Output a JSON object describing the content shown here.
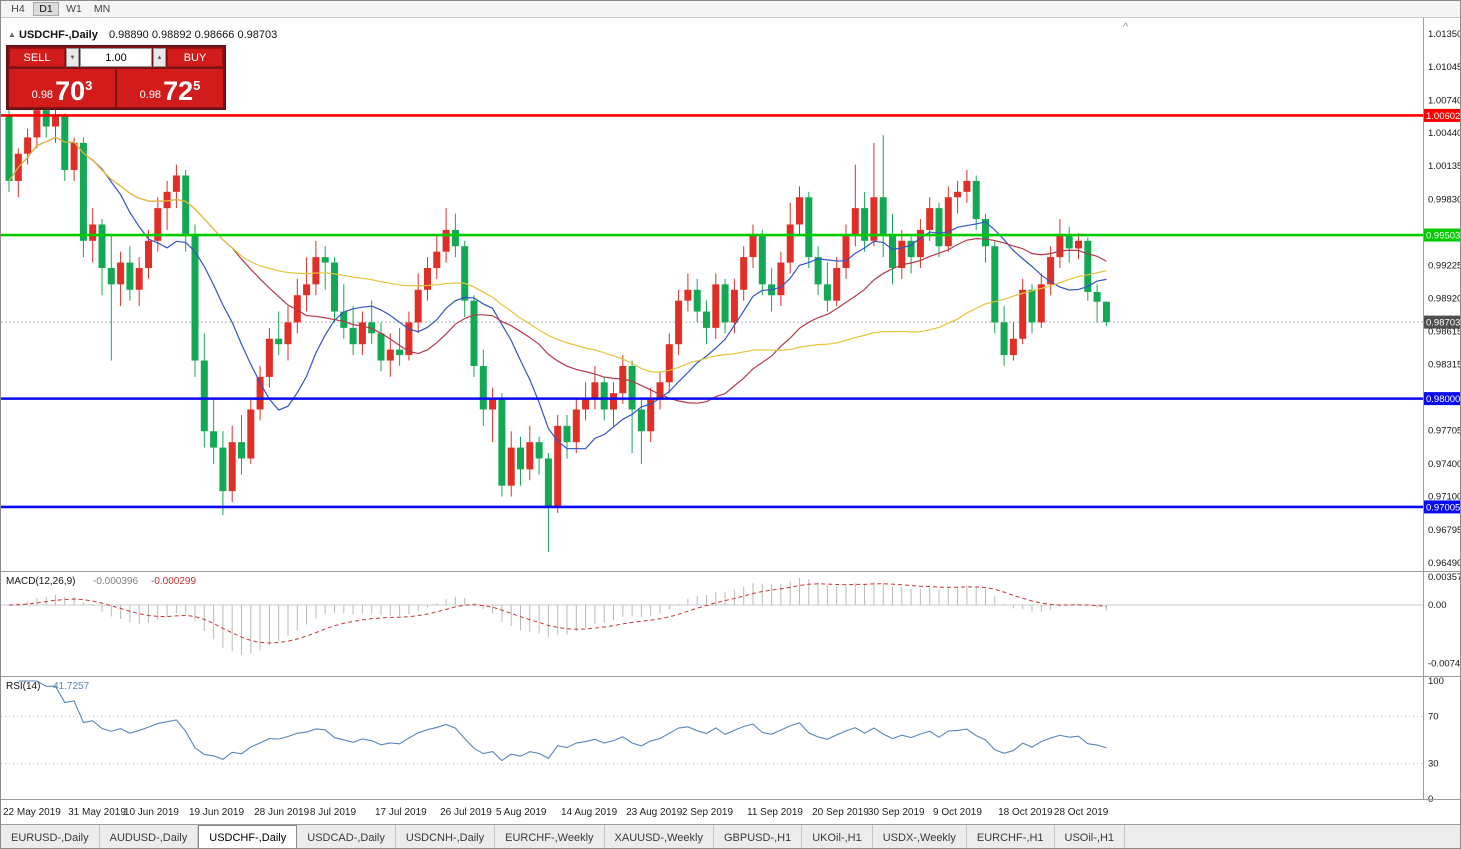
{
  "toolbar": {
    "periods": [
      "H4",
      "D1",
      "W1",
      "MN"
    ],
    "active_period": "D1"
  },
  "icons": {
    "collapse": "▲",
    "shift_marker": "^",
    "spin_up": "▲",
    "spin_down": "▼"
  },
  "trade_panel": {
    "sell_label": "SELL",
    "buy_label": "BUY",
    "volume": "1.00",
    "bid": {
      "prefix": "0.98",
      "big": "70",
      "sup": "3"
    },
    "ask": {
      "prefix": "0.98",
      "big": "72",
      "sup": "5"
    }
  },
  "tabs": {
    "items": [
      "EURUSD-,Daily",
      "AUDUSD-,Daily",
      "USDCHF-,Daily",
      "USDCAD-,Daily",
      "USDCNH-,Daily",
      "EURCHF-,Weekly",
      "XAUUSD-,Weekly",
      "GBPUSD-,H1",
      "UKOil-,H1",
      "USDX-,Weekly",
      "EURCHF-,H1",
      "USOil-,H1"
    ],
    "active": "USDCHF-,Daily"
  },
  "chart_data": {
    "type": "candlestick",
    "symbol": "USDCHF-",
    "timeframe": "Daily",
    "title": "USDCHF-,Daily",
    "ohlc_text": "0.98890 0.98892 0.98666 0.98703",
    "current_ohlc": {
      "open": "0.98890",
      "high": "0.98892",
      "low": "0.98666",
      "close": "0.98703"
    },
    "ylim": [
      0.9642,
      1.015
    ],
    "bull_color": "#df2f26",
    "bear_color": "#13a853",
    "price_axis_ticks": [
      "1.01350",
      "1.01045",
      "1.00740",
      "1.00440",
      "1.00135",
      "0.99830",
      "0.99225",
      "0.98920",
      "0.98615",
      "0.98315",
      "0.97705",
      "0.97400",
      "0.97100",
      "0.96795",
      "0.96490"
    ],
    "date_labels": [
      {
        "i": 0,
        "t": "22 May 2019"
      },
      {
        "i": 7,
        "t": "31 May 2019"
      },
      {
        "i": 13,
        "t": "10 Jun 2019"
      },
      {
        "i": 20,
        "t": "19 Jun 2019"
      },
      {
        "i": 27,
        "t": "28 Jun 2019"
      },
      {
        "i": 33,
        "t": "8 Jul 2019"
      },
      {
        "i": 40,
        "t": "17 Jul 2019"
      },
      {
        "i": 47,
        "t": "26 Jul 2019"
      },
      {
        "i": 53,
        "t": "5 Aug 2019"
      },
      {
        "i": 60,
        "t": "14 Aug 2019"
      },
      {
        "i": 67,
        "t": "23 Aug 2019"
      },
      {
        "i": 73,
        "t": "2 Sep 2019"
      },
      {
        "i": 80,
        "t": "11 Sep 2019"
      },
      {
        "i": 87,
        "t": "20 Sep 2019"
      },
      {
        "i": 93,
        "t": "30 Sep 2019"
      },
      {
        "i": 100,
        "t": "9 Oct 2019"
      },
      {
        "i": 107,
        "t": "18 Oct 2019"
      },
      {
        "i": 113,
        "t": "28 Oct 2019"
      }
    ],
    "horizontal_lines": [
      {
        "price": 1.00602,
        "label": "1.00602",
        "color": "#ff0000"
      },
      {
        "price": 0.99503,
        "label": "0.99503",
        "color": "#00ca00"
      },
      {
        "price": 0.98,
        "label": "0.98000",
        "color": "#0a0af0"
      },
      {
        "price": 0.97005,
        "label": "0.97005",
        "color": "#0a0af0"
      }
    ],
    "current_price": {
      "value": 0.98703,
      "label": "0.98703",
      "tag_color": "#4e4e4e"
    },
    "moving_averages": [
      {
        "period": 10,
        "color": "#3353c8"
      },
      {
        "period": 25,
        "color": "#b23a48"
      },
      {
        "period": 50,
        "color": "#e3c53a"
      }
    ],
    "ohlc": [
      [
        1.006,
        1.0065,
        0.999,
        1.0
      ],
      [
        1.0,
        1.003,
        0.9985,
        1.0025
      ],
      [
        1.0025,
        1.0048,
        1.0015,
        1.004
      ],
      [
        1.004,
        1.0075,
        1.003,
        1.0065
      ],
      [
        1.0065,
        1.0072,
        1.004,
        1.005
      ],
      [
        1.005,
        1.0068,
        1.0035,
        1.006
      ],
      [
        1.006,
        1.0062,
        1.0,
        1.001
      ],
      [
        1.001,
        1.004,
        1.0,
        1.0035
      ],
      [
        1.0035,
        1.004,
        0.993,
        0.9945
      ],
      [
        0.9945,
        0.9975,
        0.9925,
        0.996
      ],
      [
        0.996,
        0.9965,
        0.9895,
        0.992
      ],
      [
        0.992,
        0.995,
        0.9835,
        0.9905
      ],
      [
        0.9905,
        0.9935,
        0.9885,
        0.9925
      ],
      [
        0.9925,
        0.994,
        0.989,
        0.99
      ],
      [
        0.99,
        0.993,
        0.9885,
        0.992
      ],
      [
        0.992,
        0.9955,
        0.991,
        0.9945
      ],
      [
        0.9945,
        0.9985,
        0.9935,
        0.9975
      ],
      [
        0.9975,
        1.0,
        0.9955,
        0.999
      ],
      [
        0.999,
        1.0015,
        0.9975,
        1.0005
      ],
      [
        1.0005,
        1.001,
        0.9935,
        0.995
      ],
      [
        0.995,
        0.996,
        0.982,
        0.9835
      ],
      [
        0.9835,
        0.986,
        0.9755,
        0.977
      ],
      [
        0.977,
        0.98,
        0.974,
        0.9755
      ],
      [
        0.9755,
        0.977,
        0.9693,
        0.9715
      ],
      [
        0.9715,
        0.9775,
        0.9705,
        0.976
      ],
      [
        0.976,
        0.9785,
        0.973,
        0.9745
      ],
      [
        0.9745,
        0.98,
        0.974,
        0.979
      ],
      [
        0.979,
        0.983,
        0.978,
        0.982
      ],
      [
        0.982,
        0.9865,
        0.981,
        0.9855
      ],
      [
        0.9855,
        0.988,
        0.984,
        0.985
      ],
      [
        0.985,
        0.9885,
        0.9835,
        0.987
      ],
      [
        0.987,
        0.991,
        0.986,
        0.9895
      ],
      [
        0.9895,
        0.993,
        0.988,
        0.9905
      ],
      [
        0.9905,
        0.9945,
        0.9895,
        0.993
      ],
      [
        0.993,
        0.994,
        0.99,
        0.9925
      ],
      [
        0.9925,
        0.993,
        0.987,
        0.988
      ],
      [
        0.988,
        0.9905,
        0.9855,
        0.9865
      ],
      [
        0.9865,
        0.9885,
        0.984,
        0.985
      ],
      [
        0.985,
        0.988,
        0.984,
        0.987
      ],
      [
        0.987,
        0.989,
        0.985,
        0.986
      ],
      [
        0.986,
        0.987,
        0.9825,
        0.9835
      ],
      [
        0.9835,
        0.986,
        0.982,
        0.9845
      ],
      [
        0.9845,
        0.9865,
        0.983,
        0.984
      ],
      [
        0.984,
        0.988,
        0.9835,
        0.987
      ],
      [
        0.987,
        0.9915,
        0.986,
        0.99
      ],
      [
        0.99,
        0.993,
        0.989,
        0.992
      ],
      [
        0.992,
        0.995,
        0.991,
        0.9935
      ],
      [
        0.9935,
        0.9975,
        0.9925,
        0.9955
      ],
      [
        0.9955,
        0.997,
        0.993,
        0.994
      ],
      [
        0.994,
        0.9945,
        0.9875,
        0.989
      ],
      [
        0.989,
        0.9895,
        0.982,
        0.983
      ],
      [
        0.983,
        0.9845,
        0.9775,
        0.979
      ],
      [
        0.979,
        0.981,
        0.976,
        0.98
      ],
      [
        0.98,
        0.9805,
        0.971,
        0.972
      ],
      [
        0.972,
        0.977,
        0.971,
        0.9755
      ],
      [
        0.9755,
        0.9765,
        0.972,
        0.9735
      ],
      [
        0.9735,
        0.9775,
        0.9725,
        0.976
      ],
      [
        0.976,
        0.9765,
        0.973,
        0.9745
      ],
      [
        0.9745,
        0.975,
        0.9659,
        0.97
      ],
      [
        0.97,
        0.9785,
        0.9695,
        0.9775
      ],
      [
        0.9775,
        0.9785,
        0.9745,
        0.976
      ],
      [
        0.976,
        0.98,
        0.975,
        0.979
      ],
      [
        0.979,
        0.9815,
        0.978,
        0.98
      ],
      [
        0.98,
        0.983,
        0.979,
        0.9815
      ],
      [
        0.9815,
        0.982,
        0.978,
        0.979
      ],
      [
        0.979,
        0.9815,
        0.9775,
        0.9805
      ],
      [
        0.9805,
        0.984,
        0.9795,
        0.983
      ],
      [
        0.983,
        0.9835,
        0.975,
        0.979
      ],
      [
        0.979,
        0.98,
        0.974,
        0.977
      ],
      [
        0.977,
        0.981,
        0.976,
        0.98
      ],
      [
        0.98,
        0.9825,
        0.979,
        0.9815
      ],
      [
        0.9815,
        0.986,
        0.9805,
        0.985
      ],
      [
        0.985,
        0.99,
        0.984,
        0.989
      ],
      [
        0.989,
        0.9915,
        0.988,
        0.99
      ],
      [
        0.99,
        0.991,
        0.987,
        0.988
      ],
      [
        0.988,
        0.989,
        0.985,
        0.9865
      ],
      [
        0.9865,
        0.9915,
        0.9855,
        0.9905
      ],
      [
        0.9905,
        0.991,
        0.986,
        0.987
      ],
      [
        0.987,
        0.991,
        0.986,
        0.99
      ],
      [
        0.99,
        0.994,
        0.989,
        0.993
      ],
      [
        0.993,
        0.996,
        0.992,
        0.995
      ],
      [
        0.995,
        0.9955,
        0.9895,
        0.9905
      ],
      [
        0.9905,
        0.992,
        0.988,
        0.9895
      ],
      [
        0.9895,
        0.9935,
        0.9885,
        0.9925
      ],
      [
        0.9925,
        0.998,
        0.9915,
        0.996
      ],
      [
        0.996,
        0.9995,
        0.995,
        0.9985
      ],
      [
        0.9985,
        0.999,
        0.992,
        0.993
      ],
      [
        0.993,
        0.994,
        0.9895,
        0.9905
      ],
      [
        0.9905,
        0.9925,
        0.988,
        0.989
      ],
      [
        0.989,
        0.993,
        0.9885,
        0.992
      ],
      [
        0.992,
        0.996,
        0.991,
        0.995
      ],
      [
        0.995,
        1.0015,
        0.994,
        0.9975
      ],
      [
        0.9975,
        0.999,
        0.9935,
        0.9945
      ],
      [
        0.9945,
        1.0035,
        0.994,
        0.9985
      ],
      [
        0.9985,
        1.0042,
        0.993,
        0.995
      ],
      [
        0.995,
        0.997,
        0.9905,
        0.992
      ],
      [
        0.992,
        0.9955,
        0.991,
        0.9945
      ],
      [
        0.9945,
        0.995,
        0.9915,
        0.993
      ],
      [
        0.993,
        0.9965,
        0.992,
        0.9955
      ],
      [
        0.9955,
        0.9985,
        0.9945,
        0.9975
      ],
      [
        0.9975,
        0.998,
        0.993,
        0.994
      ],
      [
        0.994,
        0.9995,
        0.9935,
        0.9985
      ],
      [
        0.9985,
        1.0,
        0.997,
        0.999
      ],
      [
        0.999,
        1.001,
        0.998,
        1.0
      ],
      [
        1.0,
        1.0005,
        0.9955,
        0.9965
      ],
      [
        0.9965,
        0.997,
        0.9925,
        0.994
      ],
      [
        0.994,
        0.9945,
        0.986,
        0.987
      ],
      [
        0.987,
        0.9885,
        0.983,
        0.984
      ],
      [
        0.984,
        0.987,
        0.9835,
        0.9855
      ],
      [
        0.9855,
        0.991,
        0.985,
        0.99
      ],
      [
        0.99,
        0.9905,
        0.986,
        0.987
      ],
      [
        0.987,
        0.9915,
        0.9865,
        0.9905
      ],
      [
        0.9905,
        0.994,
        0.9895,
        0.993
      ],
      [
        0.993,
        0.9965,
        0.992,
        0.995
      ],
      [
        0.995,
        0.9958,
        0.9925,
        0.9938
      ],
      [
        0.9938,
        0.9952,
        0.9928,
        0.9945
      ],
      [
        0.9945,
        0.9948,
        0.989,
        0.9898
      ],
      [
        0.9898,
        0.9905,
        0.987,
        0.9889
      ],
      [
        0.9889,
        0.98892,
        0.98666,
        0.98703
      ]
    ],
    "macd": {
      "label": "MACD(12,26,9)",
      "value_main": "-0.000396",
      "value_signal": "-0.000299",
      "fast": 12,
      "slow": 26,
      "signal": 9,
      "axis_ticks": [
        "0.003574",
        "0.00",
        "-0.00749"
      ],
      "histogram_color": "#b9b9b9",
      "signal_color": "#c63636"
    },
    "rsi": {
      "label": "RSI(14)",
      "value": "41.7257",
      "period": 14,
      "axis_ticks": [
        "100",
        "70",
        "30",
        "0"
      ],
      "levels": [
        70,
        30
      ],
      "line_color": "#5a86ba"
    }
  }
}
